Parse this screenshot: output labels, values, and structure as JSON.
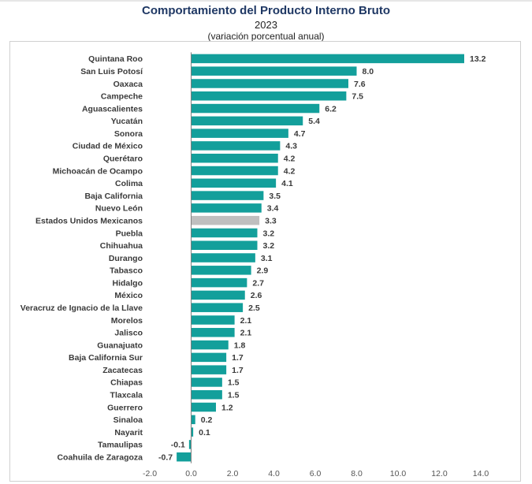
{
  "title": "Comportamiento del Producto Interno Bruto",
  "subtitle": "2023",
  "subtitle2": "(variación porcentual anual)",
  "chart_data": {
    "type": "bar",
    "orientation": "horizontal",
    "categories": [
      "Quintana Roo",
      "San Luis Potosí",
      "Oaxaca",
      "Campeche",
      "Aguascalientes",
      "Yucatán",
      "Sonora",
      "Ciudad de México",
      "Querétaro",
      "Michoacán de Ocampo",
      "Colima",
      "Baja California",
      "Nuevo León",
      "Estados Unidos Mexicanos",
      "Puebla",
      "Chihuahua",
      "Durango",
      "Tabasco",
      "Hidalgo",
      "México",
      "Veracruz de Ignacio de la Llave",
      "Morelos",
      "Jalisco",
      "Guanajuato",
      "Baja California Sur",
      "Zacatecas",
      "Chiapas",
      "Tlaxcala",
      "Guerrero",
      "Sinaloa",
      "Nayarit",
      "Tamaulipas",
      "Coahuila de Zaragoza"
    ],
    "values": [
      13.2,
      8.0,
      7.6,
      7.5,
      6.2,
      5.4,
      4.7,
      4.3,
      4.2,
      4.2,
      4.1,
      3.5,
      3.4,
      3.3,
      3.2,
      3.2,
      3.1,
      2.9,
      2.7,
      2.6,
      2.5,
      2.1,
      2.1,
      1.8,
      1.7,
      1.7,
      1.5,
      1.5,
      1.2,
      0.2,
      0.1,
      -0.1,
      -0.7
    ],
    "value_labels": [
      "13.2",
      "8.0",
      "7.6",
      "7.5",
      "6.2",
      "5.4",
      "4.7",
      "4.3",
      "4.2",
      "4.2",
      "4.1",
      "3.5",
      "3.4",
      "3.3",
      "3.2",
      "3.2",
      "3.1",
      "2.9",
      "2.7",
      "2.6",
      "2.5",
      "2.1",
      "2.1",
      "1.8",
      "1.7",
      "1.7",
      "1.5",
      "1.5",
      "1.2",
      "0.2",
      "0.1",
      "-0.1",
      "-0.7"
    ],
    "highlight_category": "Estados Unidos Mexicanos",
    "xlim": [
      -2.0,
      14.0
    ],
    "x_ticks": [
      "-2.0",
      "0.0",
      "2.0",
      "4.0",
      "6.0",
      "8.0",
      "10.0",
      "12.0",
      "14.0"
    ],
    "grid": false,
    "colors": {
      "bar": "#139f9b",
      "highlight": "#bfbfbf",
      "axis": "#7f7f7f"
    }
  }
}
